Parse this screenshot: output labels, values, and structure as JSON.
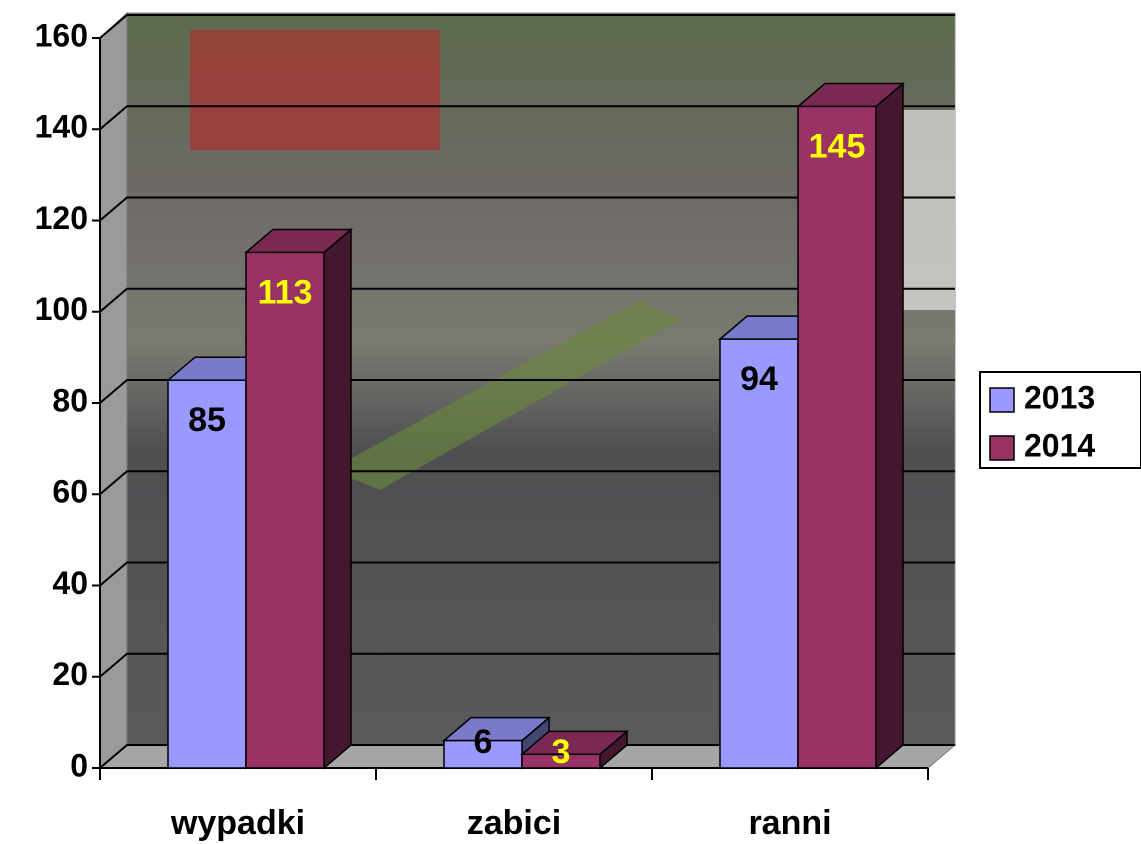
{
  "chart_data": {
    "type": "bar3d",
    "categories": [
      "wypadki",
      "zabici",
      "ranni"
    ],
    "series": [
      {
        "name": "2013",
        "color": "#9999ff",
        "label_color": "#000000",
        "values": [
          85,
          6,
          94
        ]
      },
      {
        "name": "2014",
        "color": "#993366",
        "label_color": "#ffff00",
        "values": [
          113,
          3,
          145
        ]
      }
    ],
    "ylim": [
      0,
      160
    ],
    "yticks": [
      0,
      20,
      40,
      60,
      80,
      100,
      120,
      140,
      160
    ],
    "grid": true,
    "legend": "right"
  }
}
